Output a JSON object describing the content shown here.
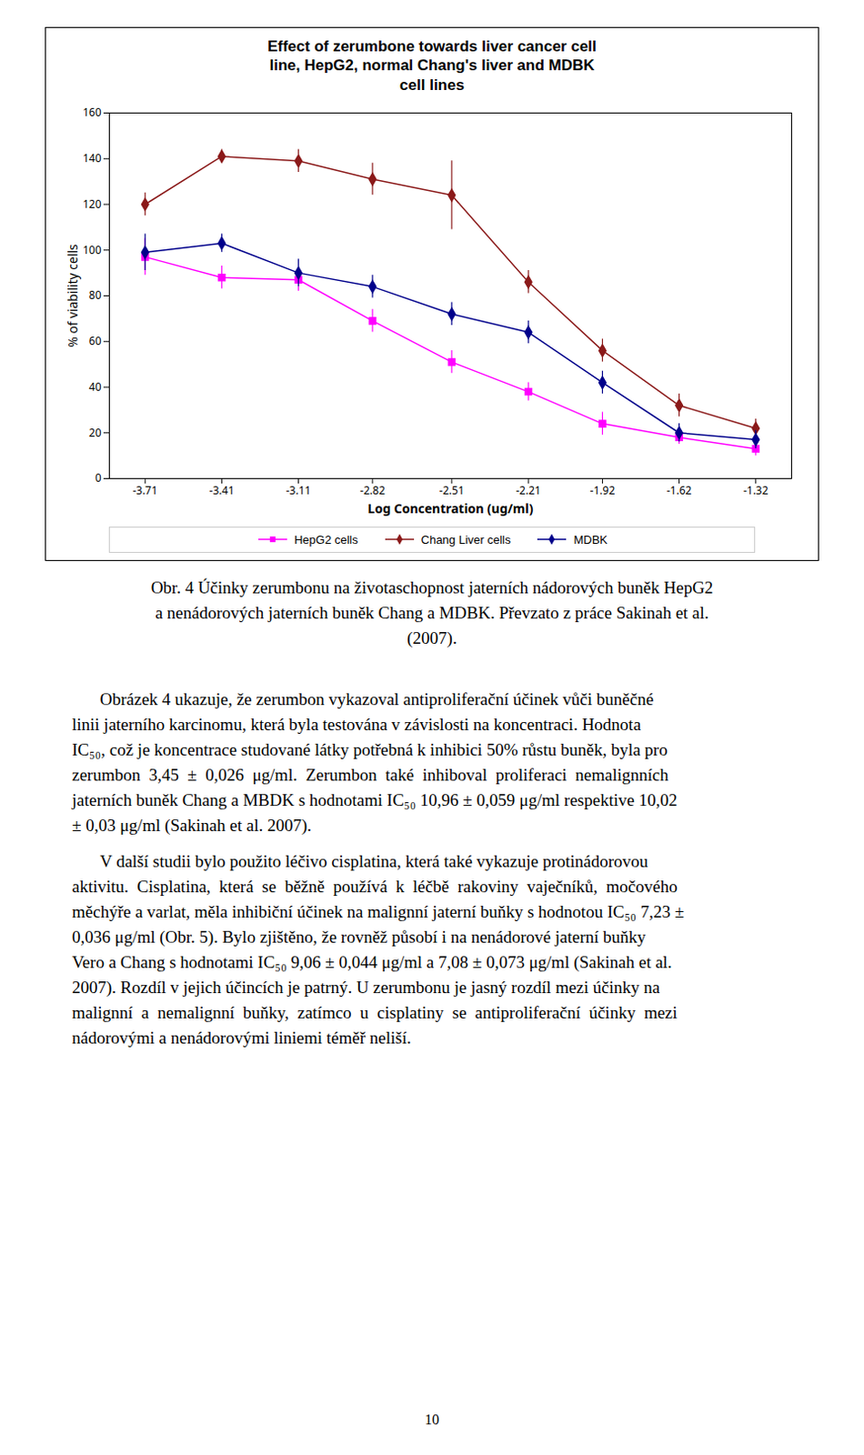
{
  "chart_data": {
    "type": "line",
    "title": "Effect of zerumbone towards liver cancer cell\nline, HepG2, normal Chang's liver and MDBK\ncell lines",
    "xlabel": "Log Concentration (ug/ml)",
    "ylabel": "% of viability cells",
    "x": [
      -3.71,
      -3.41,
      -3.11,
      -2.82,
      -2.51,
      -2.21,
      -1.92,
      -1.62,
      -1.32
    ],
    "xlim": [
      -3.85,
      -1.18
    ],
    "xticks": [
      -3.71,
      -3.41,
      -3.11,
      -2.82,
      -2.51,
      -2.21,
      -1.92,
      -1.62,
      -1.32
    ],
    "ylim": [
      0,
      160
    ],
    "yticks": [
      0,
      20,
      40,
      60,
      80,
      100,
      120,
      140,
      160
    ],
    "grid": false,
    "legend": "bottom",
    "series": [
      {
        "name": "HepG2 cells",
        "color": "#FF00FF",
        "marker": "square",
        "values": [
          97,
          88,
          87,
          69,
          51,
          38,
          24,
          18,
          13
        ],
        "errors": [
          8,
          5,
          5,
          5,
          5,
          4,
          5,
          3,
          3
        ]
      },
      {
        "name": "Chang Liver cells",
        "color": "#8B1A1A",
        "marker": "diamond",
        "values": [
          120,
          141,
          139,
          131,
          124,
          86,
          56,
          32,
          22
        ],
        "errors": [
          5,
          3,
          5,
          7,
          15,
          5,
          5,
          5,
          4
        ]
      },
      {
        "name": "MDBK",
        "color": "#00008B",
        "marker": "diamond",
        "values": [
          99,
          103,
          90,
          84,
          72,
          64,
          42,
          20,
          17
        ],
        "errors": [
          8,
          4,
          6,
          5,
          5,
          5,
          5,
          4,
          4
        ]
      }
    ],
    "caption": [
      "Obr. 4 Účinky zerumbonu na životaschopnost jaterních nádorových buněk HepG2",
      "a nenádorových jaterních buněk Chang a MDBK. Převzato z práce Sakinah et al.",
      "(2007)."
    ]
  },
  "body_text": [
    [
      "Obrázek 4 ukazuje, že zerumbon vykazoval antiproliferační účinek vůči buněčné",
      "linii jaterního karcinomu, která byla testována v závislosti na koncentraci. Hodnota",
      "IC₅₀, což je koncentrace studované látky potřebná k inhibici 50% růstu buněk, byla pro",
      "zerumbon  3,45  ±  0,026  μg/ml.  Zerumbon  také  inhiboval  proliferaci  nemalignních",
      "jaterních buněk Chang a MBDK s hodnotami IC₅₀ 10,96 ± 0,059 μg/ml respektive 10,02",
      "± 0,03 μg/ml (Sakinah et al. 2007)."
    ],
    [
      "V další studii bylo použito léčivo cisplatina, která také vykazuje protinádorovou",
      "aktivitu.  Cisplatina,  která  se  běžně  používá  k  léčbě  rakoviny  vaječníků,  močového",
      "měchýře a varlat, měla inhibiční účinek na malignní jaterní buňky s hodnotou IC₅₀ 7,23 ±",
      "0,036 μg/ml (Obr. 5). Bylo zjištěno, že rovněž působí i na nenádorové jaterní buňky",
      "Vero a Chang s hodnotami IC₅₀ 9,06 ± 0,044 μg/ml a 7,08 ± 0,073 μg/ml (Sakinah et al.",
      "2007). Rozdíl v jejich účincích je patrný. U zerumbonu je jasný rozdíl mezi účinky na",
      "malignní  a  nemalignní  buňky,  zatímco  u  cisplatiny  se  antiproliferační  účinky  mezi",
      "nádorovými a nenádorovými liniemi téměř neliší."
    ]
  ],
  "page_number": "10"
}
